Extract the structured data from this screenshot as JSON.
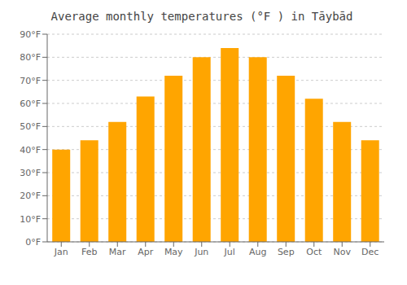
{
  "chart_data": {
    "type": "bar",
    "title": "Average monthly temperatures (°F ) in Tāybād",
    "categories": [
      "Jan",
      "Feb",
      "Mar",
      "Apr",
      "May",
      "Jun",
      "Jul",
      "Aug",
      "Sep",
      "Oct",
      "Nov",
      "Dec"
    ],
    "values": [
      40,
      44,
      52,
      63,
      72,
      80,
      84,
      80,
      72,
      62,
      52,
      44
    ],
    "color": "#FFA500",
    "ylim": [
      0,
      90
    ],
    "yticks": [
      {
        "value": 0,
        "label": "0°F"
      },
      {
        "value": 10,
        "label": "10°F"
      },
      {
        "value": 20,
        "label": "20°F"
      },
      {
        "value": 30,
        "label": "30°F"
      },
      {
        "value": 40,
        "label": "40°F"
      },
      {
        "value": 50,
        "label": "50°F"
      },
      {
        "value": 60,
        "label": "60°F"
      },
      {
        "value": 70,
        "label": "70°F"
      },
      {
        "value": 80,
        "label": "80°F"
      },
      {
        "value": 90,
        "label": "90°F"
      }
    ],
    "grid": true
  }
}
